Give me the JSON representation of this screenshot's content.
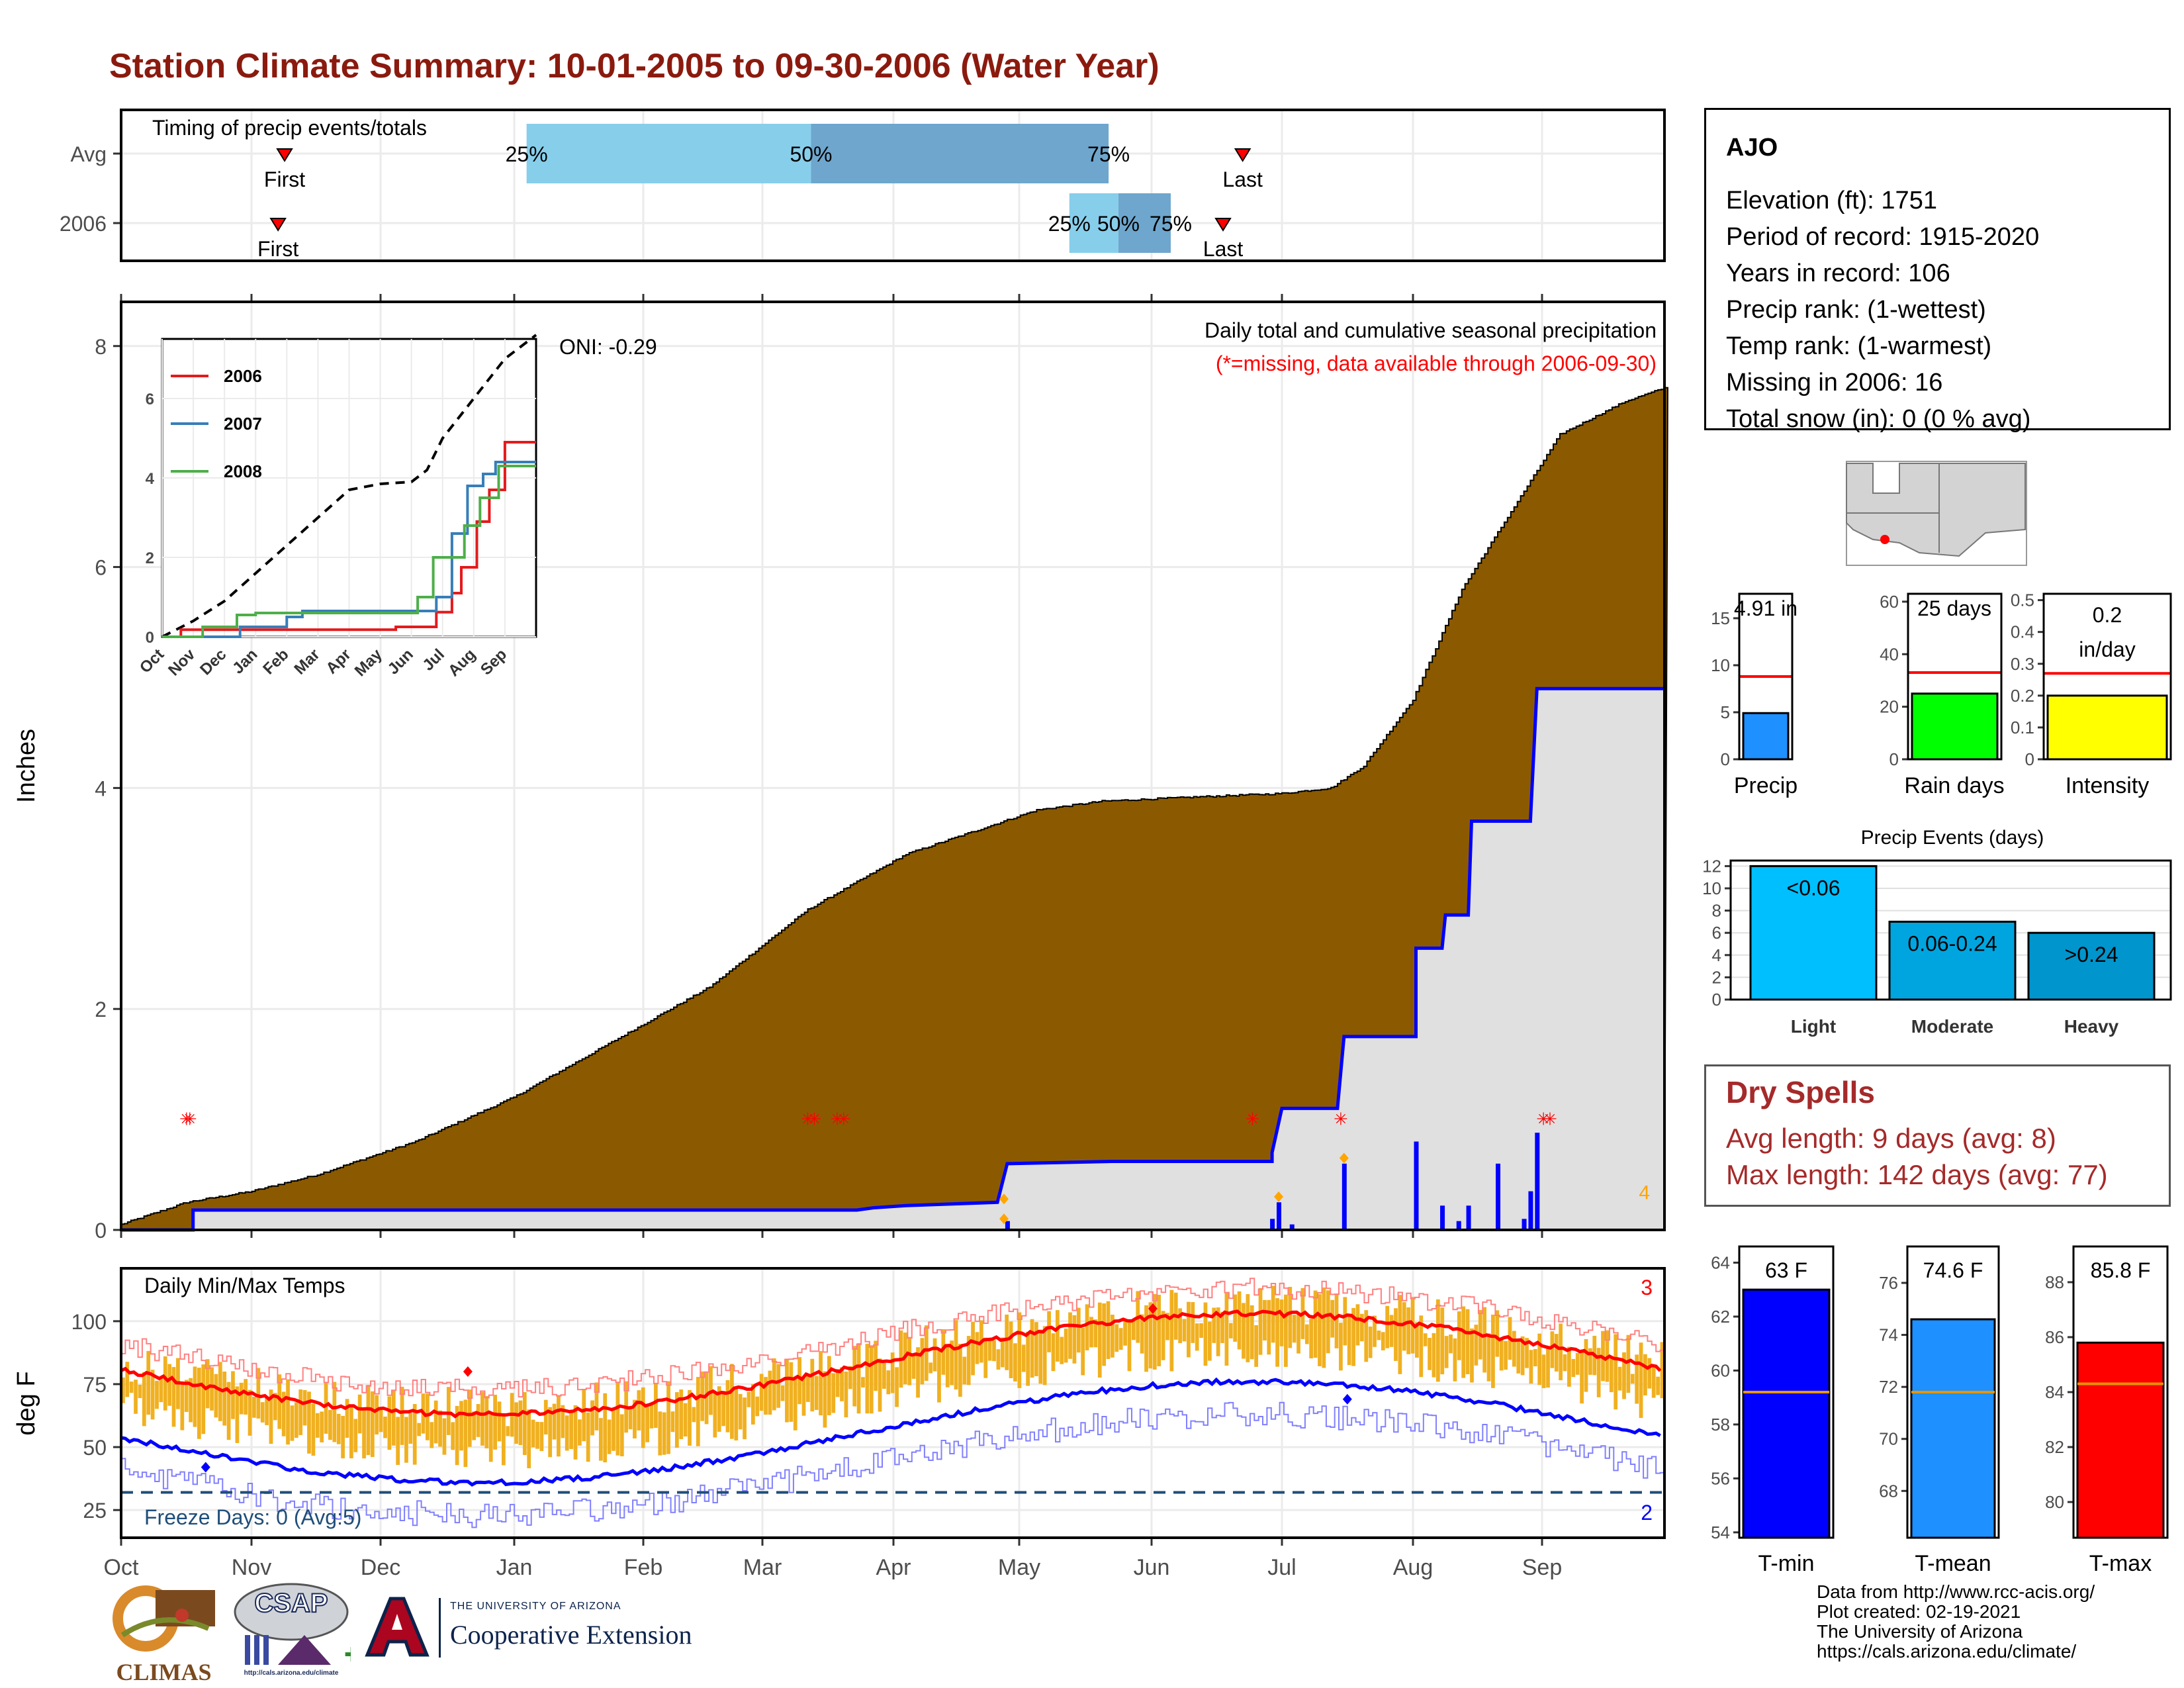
{
  "title": "Station Climate Summary: 10-01-2005 to 09-30-2006 (Water Year)",
  "timing_panel": {
    "label": "Timing of precip events/totals",
    "rows": [
      {
        "name": "Avg",
        "first_label": "First",
        "last_label": "Last",
        "first_x": 50,
        "last_x": 343,
        "q25": 124,
        "q50": 211,
        "q75": 302,
        "p25_label": "25%",
        "p50_label": "50%",
        "p75_label": "75%"
      },
      {
        "name": "2006",
        "first_label": "First",
        "last_label": "Last",
        "first_x": 48,
        "last_x": 337,
        "q25": 290,
        "q50": 305,
        "q75": 321,
        "p25_label": "25%",
        "p50_label": "50%",
        "p75_label": "75%"
      }
    ],
    "colors": {
      "light": "#87ceeb",
      "dark": "#6ea6cd",
      "marker": "#ff0000"
    }
  },
  "chart_data": [
    {
      "type": "area",
      "name": "precip",
      "title": "Daily total and cumulative seasonal precipitation",
      "subtitle": "(*=missing, data available through 2006-09-30)",
      "ylabel": "Inches",
      "ylim": [
        0,
        8.4
      ],
      "yticks": [
        0,
        2,
        4,
        6,
        8
      ],
      "oni_label": "ONI: -0.29",
      "corner_count": "4",
      "cum_avg": [
        [
          0,
          0.05
        ],
        [
          20,
          0.25
        ],
        [
          40,
          0.35
        ],
        [
          60,
          0.5
        ],
        [
          90,
          0.8
        ],
        [
          120,
          1.2
        ],
        [
          150,
          1.7
        ],
        [
          180,
          2.2
        ],
        [
          210,
          2.9
        ],
        [
          240,
          3.4
        ],
        [
          260,
          3.6
        ],
        [
          280,
          3.8
        ],
        [
          300,
          3.88
        ],
        [
          330,
          3.92
        ],
        [
          355,
          3.95
        ],
        [
          370,
          4.0
        ],
        [
          380,
          4.2
        ],
        [
          395,
          4.8
        ],
        [
          410,
          5.8
        ],
        [
          425,
          6.5
        ],
        [
          440,
          7.2
        ],
        [
          460,
          7.5
        ],
        [
          472,
          7.62
        ]
      ],
      "cum_2006": [
        [
          0,
          0
        ],
        [
          22,
          0
        ],
        [
          22,
          0.18
        ],
        [
          225,
          0.18
        ],
        [
          230,
          0.2
        ],
        [
          240,
          0.22
        ],
        [
          268,
          0.25
        ],
        [
          271,
          0.6
        ],
        [
          303,
          0.62
        ],
        [
          352,
          0.62
        ],
        [
          352,
          0.7
        ],
        [
          355,
          1.1
        ],
        [
          372,
          1.1
        ],
        [
          374,
          1.75
        ],
        [
          396,
          1.75
        ],
        [
          396,
          2.55
        ],
        [
          404,
          2.55
        ],
        [
          405,
          2.85
        ],
        [
          412,
          2.85
        ],
        [
          413,
          3.7
        ],
        [
          431,
          3.7
        ],
        [
          433,
          4.9
        ],
        [
          472,
          4.9
        ]
      ],
      "daily_bars_2006": [
        [
          271,
          0.08
        ],
        [
          352,
          0.1
        ],
        [
          354,
          0.25
        ],
        [
          358,
          0.05
        ],
        [
          374,
          0.6
        ],
        [
          396,
          0.8
        ],
        [
          404,
          0.22
        ],
        [
          409,
          0.08
        ],
        [
          412,
          0.22
        ],
        [
          421,
          0.6
        ],
        [
          429,
          0.1
        ],
        [
          431,
          0.35
        ],
        [
          433,
          0.88
        ]
      ],
      "missing_days": [
        20,
        21,
        210,
        212,
        219,
        221,
        346,
        373,
        435,
        437
      ],
      "freeze_diamonds": [
        [
          270,
          0.28
        ],
        [
          270,
          0.1
        ],
        [
          354,
          0.3
        ],
        [
          374,
          0.65
        ]
      ],
      "colors": {
        "cum_avg": "#8b5a00",
        "cum_2006": "#0000ff",
        "fill_2006": "#e0e0e0",
        "missing": "#ff0000",
        "diamond": "#ffa500",
        "corner": "#ffa500"
      }
    },
    {
      "type": "line",
      "name": "inset",
      "series": [
        {
          "name": "2006",
          "color": "#e41a1c"
        },
        {
          "name": "2007",
          "color": "#377eb8"
        },
        {
          "name": "2008",
          "color": "#4daf4a"
        }
      ],
      "ylim": [
        0,
        7.5
      ],
      "yticks": [
        0,
        2,
        4,
        6
      ],
      "months": [
        "Oct",
        "Nov",
        "Dec",
        "Jan",
        "Feb",
        "Mar",
        "Apr",
        "May",
        "Jun",
        "Jul",
        "Aug",
        "Sep"
      ]
    },
    {
      "type": "bar",
      "name": "temps",
      "title": "Daily Min/Max Temps",
      "ylabel": "deg F",
      "ylim": [
        14,
        121
      ],
      "yticks": [
        25,
        50,
        75,
        100
      ],
      "freeze_label": "Freeze Days: 0 (Avg:5)",
      "freeze_line": 32,
      "top_count": "3",
      "bottom_count": "2",
      "colors": {
        "bars": "#f0b020",
        "avg_max": "#ff0000",
        "avg_min": "#0000ff",
        "extreme_max": "#ff8080",
        "extreme_min": "#8080ff",
        "freeze": "#1f4e79"
      }
    },
    {
      "type": "bar",
      "name": "small_precip",
      "panels": [
        {
          "label": "Precip",
          "value_label": "4.91 in",
          "value": 4.91,
          "avg": 8.8,
          "ylim": [
            0,
            17.6
          ],
          "yticks": [
            0,
            5,
            10,
            15
          ],
          "color": "#1e90ff"
        },
        {
          "label": "Rain days",
          "value_label": "25 days",
          "value": 25,
          "avg": 33,
          "ylim": [
            0,
            63
          ],
          "yticks": [
            0,
            20,
            40,
            60
          ],
          "color": "#00ff00"
        },
        {
          "label": "Intensity",
          "value_label": "0.2 in/day",
          "value_line1": "0.2",
          "value_line2": "in/day",
          "value": 0.2,
          "avg": 0.27,
          "ylim": [
            0,
            0.52
          ],
          "yticks": [
            0.0,
            0.1,
            0.2,
            0.3,
            0.4,
            0.5
          ],
          "color": "#ffff00"
        }
      ]
    },
    {
      "type": "bar",
      "name": "events",
      "title": "Precip Events (days)",
      "categories": [
        "Light",
        "Moderate",
        "Heavy"
      ],
      "values": [
        12,
        7,
        6
      ],
      "bar_labels": [
        "<0.06",
        "0.06-0.24",
        ">0.24"
      ],
      "ylim": [
        0,
        12.5
      ],
      "yticks": [
        0,
        2,
        4,
        6,
        8,
        10,
        12
      ],
      "colors": [
        "#00bfff",
        "#00a5e0",
        "#0095cc"
      ]
    },
    {
      "type": "bar",
      "name": "temp_summary",
      "panels": [
        {
          "label": "T-min",
          "value_label": "63 F",
          "value": 63,
          "avg": 59.2,
          "ylim": [
            53.8,
            64.6
          ],
          "yticks": [
            54,
            56,
            58,
            60,
            62,
            64
          ],
          "color": "#0000ff"
        },
        {
          "label": "T-mean",
          "value_label": "74.6 F",
          "value": 74.6,
          "avg": 71.8,
          "ylim": [
            66.2,
            77.4
          ],
          "yticks": [
            68,
            70,
            72,
            74,
            76
          ],
          "color": "#1e90ff"
        },
        {
          "label": "T-max",
          "value_label": "85.8 F",
          "value": 85.8,
          "avg": 84.3,
          "ylim": [
            78.7,
            89.3
          ],
          "yticks": [
            80,
            82,
            84,
            86,
            88
          ],
          "color": "#ff0000"
        }
      ],
      "avg_color": "#e69500"
    }
  ],
  "months_main": [
    "Oct",
    "Nov",
    "Dec",
    "Jan",
    "Feb",
    "Mar",
    "Apr",
    "May",
    "Jun",
    "Jul",
    "Aug",
    "Sep"
  ],
  "station": {
    "name": "AJO",
    "lines": [
      "Elevation (ft): 1751",
      "Period of record: 1915-2020",
      "Years in record: 106",
      "Precip rank:  (1-wettest)",
      "Temp rank:  (1-warmest)",
      "Missing in 2006: 16",
      "Total snow (in): 0 (0 % avg)"
    ]
  },
  "dry_spells": {
    "title": "Dry Spells",
    "avg": "Avg length: 9 days (avg: 8)",
    "max": "Max length: 142 days (avg: 77)"
  },
  "footer": {
    "lines": [
      "Data from http://www.rcc-acis.org/",
      "Plot created: 02-19-2021",
      "The University of Arizona",
      "https://cals.arizona.edu/climate/"
    ],
    "logos": {
      "climas": "CLIMAS",
      "csap": "CSAP",
      "csap_url": "http://cals.arizona.edu/climate",
      "ua_small": "THE UNIVERSITY OF ARIZONA",
      "ua_big": "Cooperative Extension"
    }
  }
}
